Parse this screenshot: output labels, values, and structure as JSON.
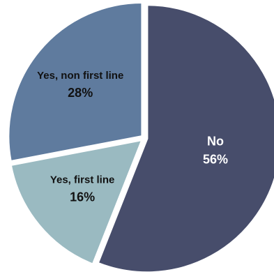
{
  "chart_data": {
    "type": "pie",
    "slices": [
      {
        "label": "No",
        "value": 56,
        "value_label": "56%",
        "color": "#474d6b",
        "label_color": "#ffffff"
      },
      {
        "label": "Yes, first line",
        "value": 16,
        "value_label": "16%",
        "color": "#9abac1",
        "label_color": "#111111"
      },
      {
        "label": "Yes, non first line",
        "value": 28,
        "value_label": "28%",
        "color": "#5f7b9e",
        "label_color": "#111111"
      }
    ],
    "start_angle": "12 o'clock",
    "direction": "clockwise",
    "legend": "none",
    "slice_separator_color": "#ffffff"
  }
}
